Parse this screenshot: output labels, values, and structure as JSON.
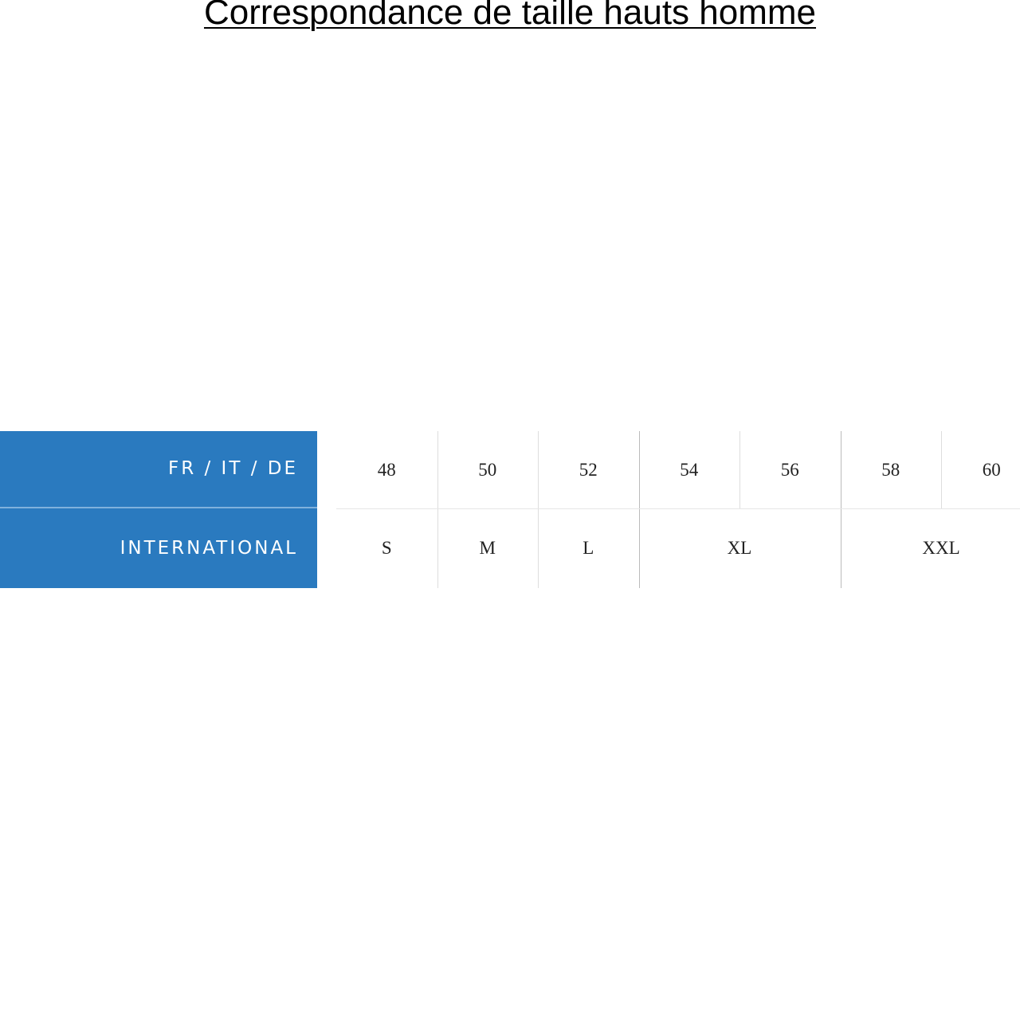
{
  "title": "Correspondance de taille hauts homme",
  "accent_color": "#2a7abf",
  "table": {
    "row_headers": [
      "FR / IT / DE",
      "INTERNATIONAL"
    ],
    "fr_it_de": [
      "48",
      "50",
      "52",
      "54",
      "56",
      "58",
      "60"
    ],
    "international": [
      {
        "label": "S",
        "span": 1
      },
      {
        "label": "M",
        "span": 1
      },
      {
        "label": "L",
        "span": 1
      },
      {
        "label": "XL",
        "span": 2
      },
      {
        "label": "XXL",
        "span": 2
      }
    ]
  }
}
